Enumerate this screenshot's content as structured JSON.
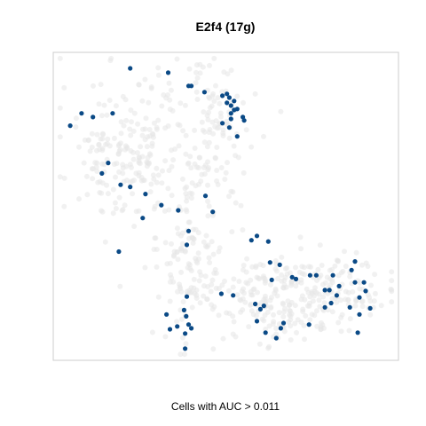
{
  "chart_data": {
    "type": "scatter",
    "title": "E2f4 (17g)",
    "xlabel": "Cells with AUC > 0.011",
    "ylabel": "",
    "xlim": [
      0,
      100
    ],
    "ylim": [
      0,
      100
    ],
    "grid": false,
    "legend": "none",
    "colors": {
      "background_cells": "#e6e6e6",
      "active_cells": "#0b4a86",
      "panel_border": "#cccccc"
    },
    "highlighted_cells": [
      [
        33.3,
        93.4
      ],
      [
        22.3,
        94.8
      ],
      [
        39.2,
        89.1
      ],
      [
        40.0,
        89.1
      ],
      [
        43.8,
        87.1
      ],
      [
        49.0,
        85.9
      ],
      [
        50.3,
        86.5
      ],
      [
        51.0,
        85.3
      ],
      [
        52.4,
        84.2
      ],
      [
        50.3,
        83.6
      ],
      [
        51.5,
        82.7
      ],
      [
        52.4,
        81.3
      ],
      [
        53.3,
        81.6
      ],
      [
        51.5,
        80.2
      ],
      [
        54.9,
        79.0
      ],
      [
        55.3,
        77.9
      ],
      [
        49.0,
        77.0
      ],
      [
        51.0,
        75.6
      ],
      [
        51.5,
        78.4
      ],
      [
        53.3,
        72.7
      ],
      [
        8.2,
        80.2
      ],
      [
        17.2,
        80.2
      ],
      [
        4.9,
        76.2
      ],
      [
        11.5,
        79.0
      ],
      [
        15.9,
        64.1
      ],
      [
        14.1,
        60.7
      ],
      [
        19.5,
        57.0
      ],
      [
        22.3,
        56.3
      ],
      [
        26.7,
        54.0
      ],
      [
        31.3,
        50.4
      ],
      [
        36.2,
        48.7
      ],
      [
        44.1,
        53.4
      ],
      [
        25.9,
        46.2
      ],
      [
        19.0,
        35.3
      ],
      [
        39.2,
        42.0
      ],
      [
        38.7,
        37.5
      ],
      [
        46.2,
        48.2
      ],
      [
        59.0,
        40.4
      ],
      [
        57.4,
        39.0
      ],
      [
        62.3,
        38.6
      ],
      [
        62.8,
        31.8
      ],
      [
        65.6,
        31.0
      ],
      [
        63.3,
        26.1
      ],
      [
        69.2,
        27.0
      ],
      [
        70.3,
        26.4
      ],
      [
        74.4,
        27.6
      ],
      [
        76.2,
        27.6
      ],
      [
        81.0,
        27.6
      ],
      [
        86.4,
        29.3
      ],
      [
        87.4,
        32.1
      ],
      [
        87.4,
        25.3
      ],
      [
        90.0,
        25.3
      ],
      [
        78.7,
        22.8
      ],
      [
        80.0,
        22.8
      ],
      [
        82.1,
        21.1
      ],
      [
        82.8,
        24.1
      ],
      [
        88.7,
        20.4
      ],
      [
        90.5,
        22.5
      ],
      [
        91.8,
        16.9
      ],
      [
        80.5,
        18.6
      ],
      [
        78.7,
        17.2
      ],
      [
        85.9,
        17.2
      ],
      [
        88.7,
        14.9
      ],
      [
        59.0,
        12.7
      ],
      [
        66.7,
        12.1
      ],
      [
        74.1,
        11.6
      ],
      [
        65.9,
        10.4
      ],
      [
        61.5,
        9.0
      ],
      [
        64.6,
        7.2
      ],
      [
        88.2,
        9.0
      ],
      [
        60.0,
        16.6
      ],
      [
        58.5,
        18.3
      ],
      [
        61.0,
        17.7
      ],
      [
        48.7,
        21.6
      ],
      [
        52.1,
        21.1
      ],
      [
        38.7,
        20.7
      ],
      [
        37.9,
        16.3
      ],
      [
        32.8,
        14.9
      ],
      [
        38.5,
        14.3
      ],
      [
        39.2,
        11.6
      ],
      [
        35.9,
        11.0
      ],
      [
        40.0,
        10.4
      ],
      [
        38.2,
        8.7
      ],
      [
        33.8,
        10.1
      ],
      [
        38.2,
        3.8
      ]
    ]
  }
}
